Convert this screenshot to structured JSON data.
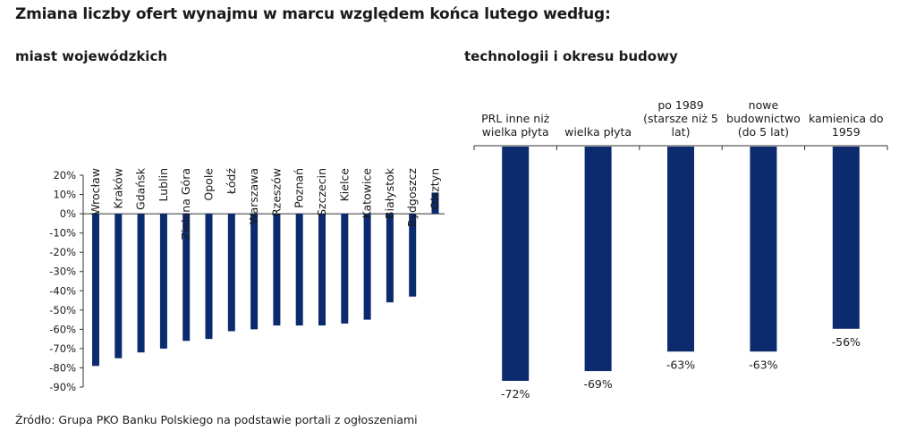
{
  "title": "Zmiana liczby ofert wynajmu w marcu względem końca lutego według:",
  "source": "Źródło: Grupa PKO Banku Polskiego na podstawie portali z ogłoszeniami",
  "colors": {
    "bar": "#0c2a6e",
    "axis": "#333333"
  },
  "chart_data": [
    {
      "type": "bar",
      "title": "miast wojewódzkich",
      "categories": [
        "Wrocław",
        "Kraków",
        "Gdańsk",
        "Lublin",
        "Zielona Góra",
        "Opole",
        "Łódź",
        "Warszawa",
        "Rzeszów",
        "Poznań",
        "Szczecin",
        "Kielce",
        "Katowice",
        "Białystok",
        "Bydgoszcz",
        "Olsztyn"
      ],
      "values": [
        -79,
        -75,
        -72,
        -70,
        -66,
        -65,
        -61,
        -60,
        -58,
        -58,
        -58,
        -57,
        -55,
        -46,
        -43,
        11
      ],
      "ylim": [
        -90,
        20
      ],
      "yticks": [
        "20%",
        "10%",
        "0%",
        "-10%",
        "-20%",
        "-30%",
        "-40%",
        "-50%",
        "-60%",
        "-70%",
        "-80%",
        "-90%"
      ],
      "ytick_values": [
        20,
        10,
        0,
        -10,
        -20,
        -30,
        -40,
        -50,
        -60,
        -70,
        -80,
        -90
      ],
      "xlabel": "",
      "ylabel": ""
    },
    {
      "type": "bar",
      "title": "technologii i okresu budowy",
      "categories": [
        [
          "PRL inne niż",
          "wielka płyta"
        ],
        [
          "wielka płyta"
        ],
        [
          "po 1989",
          "(starsze niż 5",
          "lat)"
        ],
        [
          "nowe",
          "budownictwo",
          "(do 5 lat)"
        ],
        [
          "kamienica do",
          "1959"
        ]
      ],
      "values": [
        -72,
        -69,
        -63,
        -63,
        -56
      ],
      "data_labels": [
        "-72%",
        "-69%",
        "-63%",
        "-63%",
        "-56%"
      ],
      "xlabel": "",
      "ylabel": ""
    }
  ]
}
